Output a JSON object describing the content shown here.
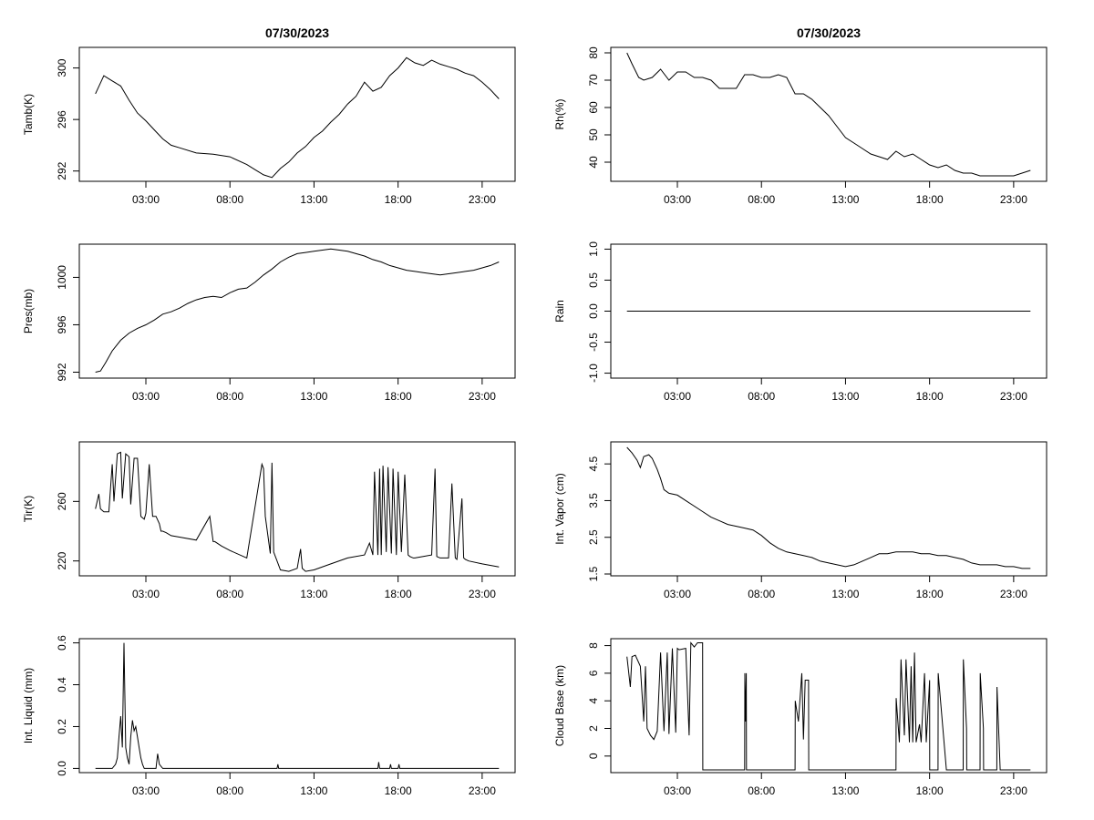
{
  "figure_title": "07/30/2023",
  "chart_data": [
    {
      "id": "tamb",
      "type": "line",
      "title": "07/30/2023",
      "ylabel": "Tamb(K)",
      "xlabel": "",
      "x_ticks": [
        "03:00",
        "08:00",
        "13:00",
        "18:00",
        "23:00"
      ],
      "x_tick_values": [
        3,
        8,
        13,
        18,
        23
      ],
      "xlim": [
        0,
        24
      ],
      "y_ticks": [
        "292",
        "296",
        "300"
      ],
      "y_tick_values": [
        292,
        296,
        300
      ],
      "ylim": [
        291.2,
        301.6
      ],
      "series": [
        {
          "x": [
            0.0,
            0.5,
            1.0,
            1.5,
            2.0,
            2.5,
            3.0,
            3.5,
            4.0,
            4.5,
            5.0,
            6.0,
            7.0,
            8.0,
            9.0,
            9.5,
            10.0,
            10.5,
            11.0,
            11.5,
            12.0,
            12.5,
            13.0,
            13.5,
            14.0,
            14.5,
            15.0,
            15.5,
            16.0,
            16.5,
            17.0,
            17.5,
            18.0,
            18.5,
            19.0,
            19.5,
            20.0,
            20.5,
            21.0,
            21.5,
            22.0,
            22.5,
            23.0,
            23.5,
            24.0
          ],
          "y": [
            298.0,
            299.4,
            299.0,
            298.6,
            297.5,
            296.5,
            295.9,
            295.2,
            294.5,
            294.0,
            293.8,
            293.4,
            293.3,
            293.1,
            292.5,
            292.1,
            291.7,
            291.5,
            292.2,
            292.7,
            293.4,
            293.9,
            294.6,
            295.1,
            295.8,
            296.4,
            297.2,
            297.8,
            298.9,
            298.2,
            298.5,
            299.4,
            300.0,
            300.8,
            300.4,
            300.2,
            300.6,
            300.3,
            300.1,
            299.9,
            299.6,
            299.4,
            298.9,
            298.3,
            297.6
          ]
        }
      ]
    },
    {
      "id": "rh",
      "type": "line",
      "title": "07/30/2023",
      "ylabel": "Rh(%)",
      "xlabel": "",
      "x_ticks": [
        "03:00",
        "08:00",
        "13:00",
        "18:00",
        "23:00"
      ],
      "x_tick_values": [
        3,
        8,
        13,
        18,
        23
      ],
      "xlim": [
        0,
        24
      ],
      "y_ticks": [
        "40",
        "50",
        "60",
        "70",
        "80"
      ],
      "y_tick_values": [
        40,
        50,
        60,
        70,
        80
      ],
      "ylim": [
        33,
        82
      ],
      "series": [
        {
          "x": [
            0.0,
            0.3,
            0.7,
            1.0,
            1.5,
            2.0,
            2.5,
            3.0,
            3.5,
            4.0,
            4.5,
            5.0,
            5.5,
            6.0,
            6.5,
            7.0,
            7.5,
            8.0,
            8.5,
            9.0,
            9.5,
            10.0,
            10.5,
            11.0,
            11.5,
            12.0,
            12.5,
            13.0,
            13.5,
            14.0,
            14.5,
            15.0,
            15.5,
            16.0,
            16.5,
            17.0,
            17.5,
            18.0,
            18.5,
            19.0,
            19.5,
            20.0,
            20.5,
            21.0,
            21.5,
            22.0,
            22.5,
            23.0,
            23.5,
            24.0
          ],
          "y": [
            80,
            76,
            71,
            70,
            71,
            74,
            70,
            73,
            73,
            71,
            71,
            70,
            67,
            67,
            67,
            72,
            72,
            71,
            71,
            72,
            71,
            65,
            65,
            63,
            60,
            57,
            53,
            49,
            47,
            45,
            43,
            42,
            41,
            44,
            42,
            43,
            41,
            39,
            38,
            39,
            37,
            36,
            36,
            35,
            35,
            35,
            35,
            35,
            36,
            37
          ]
        }
      ]
    },
    {
      "id": "pres",
      "type": "line",
      "title": "",
      "ylabel": "Pres(mb)",
      "xlabel": "",
      "x_ticks": [
        "03:00",
        "08:00",
        "13:00",
        "18:00",
        "23:00"
      ],
      "x_tick_values": [
        3,
        8,
        13,
        18,
        23
      ],
      "xlim": [
        0,
        24
      ],
      "y_ticks": [
        "992",
        "996",
        "1000"
      ],
      "y_tick_values": [
        992,
        996,
        1000
      ],
      "ylim": [
        991.5,
        1002.8
      ],
      "series": [
        {
          "x": [
            0.0,
            0.3,
            0.6,
            1.0,
            1.5,
            2.0,
            2.5,
            3.0,
            3.5,
            4.0,
            4.5,
            5.0,
            5.5,
            6.0,
            6.5,
            7.0,
            7.5,
            8.0,
            8.5,
            9.0,
            9.5,
            10.0,
            10.5,
            11.0,
            11.5,
            12.0,
            12.5,
            13.0,
            13.5,
            14.0,
            14.5,
            15.0,
            15.5,
            16.0,
            16.5,
            17.0,
            17.5,
            18.0,
            18.5,
            19.0,
            19.5,
            20.0,
            20.5,
            21.0,
            21.5,
            22.0,
            22.5,
            23.0,
            23.5,
            24.0
          ],
          "y": [
            992.0,
            992.1,
            992.8,
            993.8,
            994.7,
            995.3,
            995.7,
            996.0,
            996.4,
            996.9,
            997.1,
            997.4,
            997.8,
            998.1,
            998.3,
            998.4,
            998.3,
            998.7,
            999.0,
            999.1,
            999.6,
            1000.2,
            1000.7,
            1001.3,
            1001.7,
            1002.0,
            1002.1,
            1002.2,
            1002.3,
            1002.4,
            1002.3,
            1002.2,
            1002.0,
            1001.8,
            1001.5,
            1001.3,
            1001.0,
            1000.8,
            1000.6,
            1000.5,
            1000.4,
            1000.3,
            1000.2,
            1000.3,
            1000.4,
            1000.5,
            1000.6,
            1000.8,
            1001.0,
            1001.3
          ]
        }
      ]
    },
    {
      "id": "rain",
      "type": "line",
      "title": "",
      "ylabel": "Rain",
      "xlabel": "",
      "x_ticks": [
        "03:00",
        "08:00",
        "13:00",
        "18:00",
        "23:00"
      ],
      "x_tick_values": [
        3,
        8,
        13,
        18,
        23
      ],
      "xlim": [
        0,
        24
      ],
      "y_ticks": [
        "-1.0",
        "-0.5",
        "0.0",
        "0.5",
        "1.0"
      ],
      "y_tick_values": [
        -1.0,
        -0.5,
        0.0,
        0.5,
        1.0
      ],
      "ylim": [
        -1.08,
        1.08
      ],
      "series": [
        {
          "x": [
            0,
            24
          ],
          "y": [
            0,
            0
          ]
        }
      ]
    },
    {
      "id": "tir",
      "type": "line",
      "title": "",
      "ylabel": "Tir(K)",
      "xlabel": "",
      "x_ticks": [
        "03:00",
        "08:00",
        "13:00",
        "18:00",
        "23:00"
      ],
      "x_tick_values": [
        3,
        8,
        13,
        18,
        23
      ],
      "xlim": [
        0,
        24
      ],
      "y_ticks": [
        "220",
        "260"
      ],
      "y_tick_values": [
        220,
        260
      ],
      "ylim": [
        210,
        300
      ],
      "series": [
        {
          "x": [
            0.0,
            0.2,
            0.3,
            0.5,
            0.8,
            1.0,
            1.1,
            1.3,
            1.5,
            1.6,
            1.8,
            2.0,
            2.1,
            2.3,
            2.5,
            2.7,
            2.9,
            3.0,
            3.2,
            3.4,
            3.6,
            3.8,
            3.9,
            4.0,
            4.2,
            4.5,
            5.0,
            6.0,
            6.8,
            7.0,
            7.1,
            7.5,
            8.0,
            9.0,
            9.9,
            10.0,
            10.1,
            10.4,
            10.5,
            10.6,
            10.8,
            11.0,
            11.5,
            12.0,
            12.2,
            12.3,
            12.5,
            13.0,
            14.0,
            15.0,
            16.0,
            16.3,
            16.5,
            16.6,
            16.8,
            16.9,
            17.0,
            17.1,
            17.3,
            17.4,
            17.6,
            17.7,
            17.9,
            18.0,
            18.2,
            18.4,
            18.6,
            18.7,
            18.9,
            19.0,
            19.5,
            20.0,
            20.2,
            20.3,
            20.5,
            21.0,
            21.2,
            21.4,
            21.5,
            21.8,
            21.9,
            22.0,
            22.2,
            23.0,
            24.0
          ],
          "y": [
            255,
            265,
            255,
            253,
            253,
            285,
            260,
            292,
            293,
            262,
            292,
            290,
            258,
            289,
            289,
            250,
            248,
            252,
            285,
            250,
            250,
            245,
            240,
            240,
            239,
            237,
            236,
            234,
            250,
            233,
            233,
            230,
            227,
            222,
            285,
            282,
            250,
            225,
            286,
            226,
            220,
            214,
            213,
            215,
            228,
            215,
            213,
            214,
            218,
            222,
            224,
            232,
            224,
            280,
            224,
            282,
            224,
            284,
            226,
            283,
            225,
            282,
            224,
            280,
            226,
            278,
            224,
            223,
            222,
            222,
            223,
            224,
            282,
            223,
            222,
            222,
            272,
            222,
            221,
            262,
            222,
            221,
            220,
            218,
            216
          ]
        }
      ]
    },
    {
      "id": "vapor",
      "type": "line",
      "title": "",
      "ylabel": "Int. Vapor (cm)",
      "xlabel": "",
      "x_ticks": [
        "03:00",
        "08:00",
        "13:00",
        "18:00",
        "23:00"
      ],
      "x_tick_values": [
        3,
        8,
        13,
        18,
        23
      ],
      "xlim": [
        0,
        24
      ],
      "y_ticks": [
        "1.5",
        "2.5",
        "3.5",
        "4.5"
      ],
      "y_tick_values": [
        1.5,
        2.5,
        3.5,
        4.5
      ],
      "ylim": [
        1.45,
        5.1
      ],
      "series": [
        {
          "x": [
            0.0,
            0.3,
            0.6,
            0.8,
            1.0,
            1.3,
            1.5,
            1.8,
            2.0,
            2.2,
            2.5,
            3.0,
            3.5,
            4.0,
            4.5,
            5.0,
            5.5,
            6.0,
            6.5,
            7.0,
            7.5,
            8.0,
            8.5,
            9.0,
            9.5,
            10.0,
            10.5,
            11.0,
            11.5,
            12.0,
            12.5,
            13.0,
            13.5,
            14.0,
            14.5,
            15.0,
            15.5,
            16.0,
            16.5,
            17.0,
            17.5,
            18.0,
            18.5,
            19.0,
            19.5,
            20.0,
            20.5,
            21.0,
            21.5,
            22.0,
            22.5,
            23.0,
            23.5,
            24.0
          ],
          "y": [
            4.95,
            4.8,
            4.6,
            4.4,
            4.7,
            4.75,
            4.65,
            4.35,
            4.1,
            3.8,
            3.7,
            3.65,
            3.5,
            3.35,
            3.2,
            3.05,
            2.95,
            2.85,
            2.8,
            2.75,
            2.7,
            2.55,
            2.35,
            2.2,
            2.1,
            2.05,
            2.0,
            1.95,
            1.85,
            1.8,
            1.75,
            1.7,
            1.75,
            1.85,
            1.95,
            2.05,
            2.05,
            2.1,
            2.1,
            2.1,
            2.05,
            2.05,
            2.0,
            2.0,
            1.95,
            1.9,
            1.8,
            1.75,
            1.75,
            1.75,
            1.7,
            1.7,
            1.65,
            1.65
          ]
        }
      ]
    },
    {
      "id": "liquid",
      "type": "line",
      "title": "",
      "ylabel": "Int. Liquid (mm)",
      "xlabel": "",
      "x_ticks": [
        "03:00",
        "08:00",
        "13:00",
        "18:00",
        "23:00"
      ],
      "x_tick_values": [
        3,
        8,
        13,
        18,
        23
      ],
      "xlim": [
        0,
        24
      ],
      "y_ticks": [
        "0.0",
        "0.2",
        "0.4",
        "0.6"
      ],
      "y_tick_values": [
        0.0,
        0.2,
        0.4,
        0.6
      ],
      "ylim": [
        -0.02,
        0.62
      ],
      "series": [
        {
          "x": [
            0.0,
            1.0,
            1.2,
            1.3,
            1.4,
            1.5,
            1.6,
            1.7,
            1.8,
            1.9,
            2.0,
            2.1,
            2.2,
            2.3,
            2.4,
            2.5,
            2.6,
            2.7,
            2.8,
            2.9,
            3.0,
            3.2,
            3.6,
            3.7,
            3.8,
            4.0,
            10.8,
            10.85,
            10.9,
            16.8,
            16.85,
            16.9,
            17.5,
            17.55,
            17.6,
            18.0,
            18.05,
            18.1,
            24.0
          ],
          "y": [
            0,
            0,
            0.02,
            0.05,
            0.15,
            0.25,
            0.1,
            0.6,
            0.1,
            0.05,
            0.02,
            0.15,
            0.23,
            0.18,
            0.2,
            0.15,
            0.1,
            0.05,
            0.02,
            0,
            0,
            0,
            0,
            0.07,
            0.02,
            0,
            0,
            0.02,
            0,
            0,
            0.03,
            0,
            0,
            0.02,
            0,
            0,
            0.02,
            0,
            0
          ]
        }
      ]
    },
    {
      "id": "cloud",
      "type": "line",
      "title": "",
      "ylabel": "Cloud Base (km)",
      "xlabel": "",
      "x_ticks": [
        "03:00",
        "08:00",
        "13:00",
        "18:00",
        "23:00"
      ],
      "x_tick_values": [
        3,
        8,
        13,
        18,
        23
      ],
      "xlim": [
        0,
        24
      ],
      "y_ticks": [
        "0",
        "2",
        "4",
        "6",
        "8"
      ],
      "y_tick_values": [
        0,
        2,
        4,
        6,
        8
      ],
      "ylim": [
        -1.2,
        8.5
      ],
      "series": [
        {
          "x": [
            0.0,
            0.2,
            0.3,
            0.5,
            0.8,
            1.0,
            1.1,
            1.2,
            1.4,
            1.6,
            1.8,
            2.0,
            2.2,
            2.4,
            2.5,
            2.7,
            2.9,
            3.0,
            3.1,
            3.5,
            3.7,
            3.8,
            4.0,
            4.2,
            4.5,
            4.51,
            7.0,
            7.01,
            7.05,
            7.1,
            7.11,
            10.0,
            10.01,
            10.2,
            10.4,
            10.5,
            10.6,
            10.8,
            10.81,
            16.0,
            16.01,
            16.2,
            16.3,
            16.5,
            16.6,
            16.8,
            16.9,
            17.0,
            17.1,
            17.2,
            17.4,
            17.5,
            17.7,
            17.8,
            18.0,
            18.01,
            18.5,
            18.51,
            19.0,
            19.01,
            20.0,
            20.01,
            20.2,
            20.21,
            21.0,
            21.01,
            21.2,
            21.21,
            22.0,
            22.01,
            22.2,
            22.21,
            24.0
          ],
          "y": [
            7.2,
            5,
            7.2,
            7.3,
            6.5,
            2.5,
            6.5,
            2,
            1.5,
            1.2,
            1.8,
            7.5,
            1.8,
            7.5,
            1.6,
            7.8,
            1.7,
            7.8,
            7.7,
            7.8,
            1.5,
            8.2,
            7.9,
            8.2,
            8.2,
            -1,
            -1,
            6,
            2.5,
            6,
            -1,
            -1,
            4,
            2.5,
            6,
            1.2,
            5.5,
            5.5,
            -1,
            -1,
            4.2,
            1,
            7,
            1.5,
            7,
            1,
            6.5,
            1,
            7.5,
            1,
            2.3,
            1,
            6,
            1,
            5.5,
            -1,
            -1,
            6,
            -1,
            -1,
            -1,
            7,
            2,
            -1,
            -1,
            6,
            2,
            -1,
            -1,
            5,
            -1,
            -1,
            -1
          ]
        }
      ]
    }
  ]
}
